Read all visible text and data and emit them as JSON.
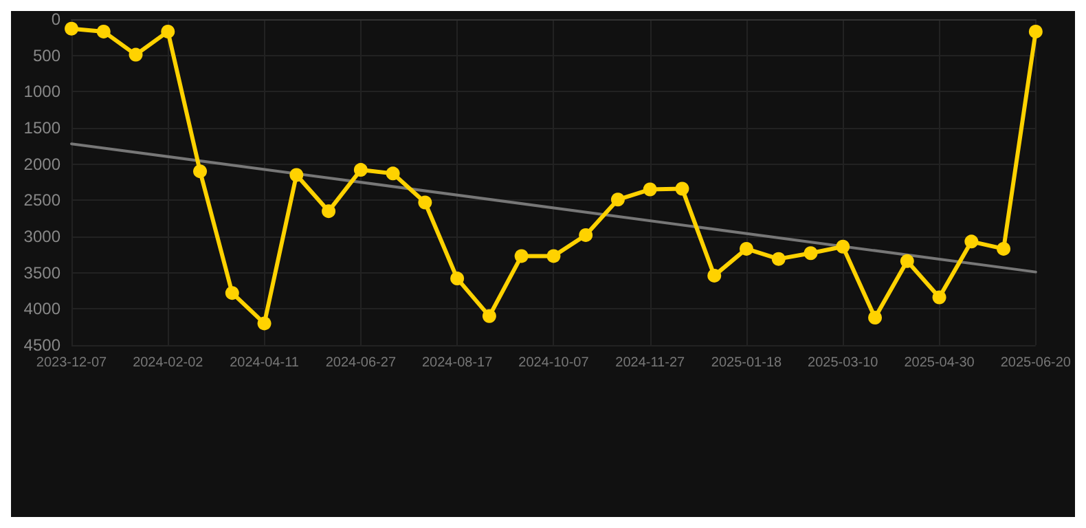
{
  "chart_data": {
    "type": "line",
    "categories": [
      "2023-12-07",
      null,
      null,
      "2024-02-02",
      null,
      null,
      "2024-04-11",
      null,
      null,
      "2024-06-27",
      null,
      null,
      "2024-08-17",
      null,
      null,
      "2024-10-07",
      null,
      null,
      "2024-11-27",
      null,
      null,
      "2025-01-18",
      null,
      null,
      "2025-03-10",
      null,
      null,
      "2025-04-30",
      null,
      null,
      "2025-06-20"
    ],
    "series": [
      {
        "color": "#ffd200",
        "values": [
          130,
          170,
          490,
          170,
          2100,
          3780,
          4200,
          2150,
          2650,
          2080,
          2130,
          2530,
          3580,
          4100,
          3270,
          3270,
          2980,
          2490,
          2350,
          2340,
          3540,
          3170,
          3310,
          3230,
          3140,
          4120,
          3340,
          3840,
          3070,
          3170,
          170
        ]
      },
      {
        "type": "line",
        "color": "#777777",
        "marker": "none",
        "values": [
          1720,
          null,
          null,
          null,
          null,
          null,
          null,
          null,
          null,
          null,
          null,
          null,
          null,
          null,
          null,
          null,
          null,
          null,
          null,
          null,
          null,
          null,
          null,
          null,
          null,
          null,
          null,
          null,
          null,
          null,
          3490
        ]
      }
    ],
    "ylim": [
      4500,
      0
    ],
    "yticks": [
      0,
      500,
      1000,
      1500,
      2000,
      2500,
      3000,
      3500,
      4000,
      4500
    ],
    "grid": true,
    "marker": "circle",
    "line_style": "solid"
  }
}
